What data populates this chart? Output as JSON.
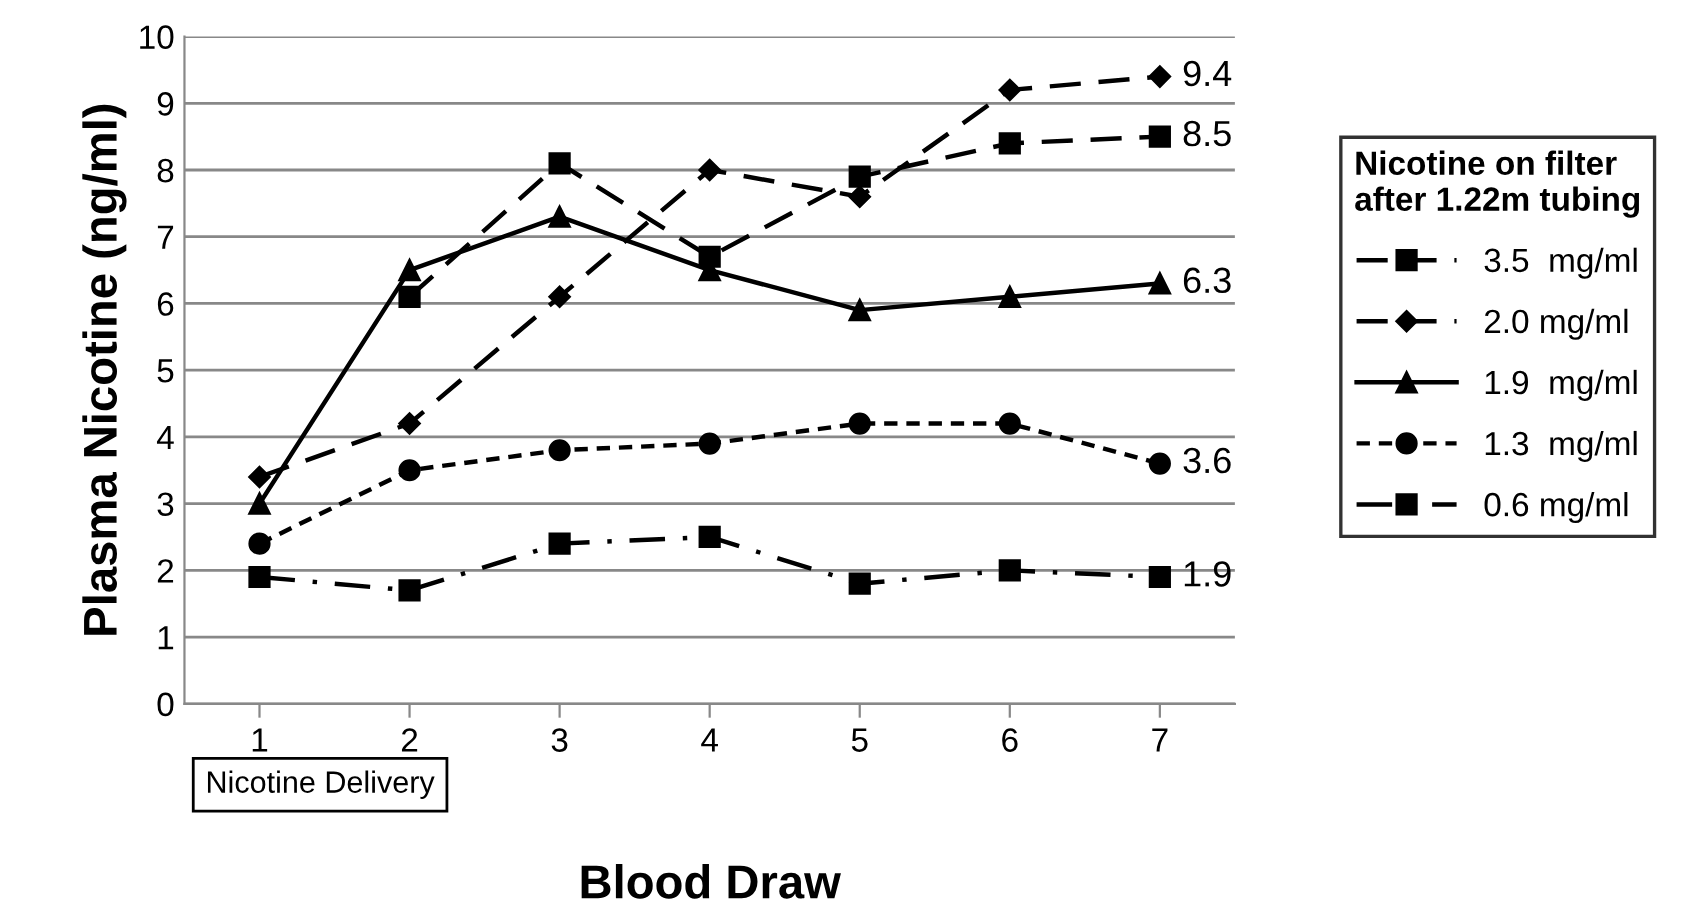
{
  "chart_data": {
    "type": "line",
    "xlabel": "Blood Draw",
    "ylabel": "Plasma Nicotine (ng/ml)",
    "legend_title": "Nicotine on filter\nafter 1.22m tubing",
    "categories": [
      "1",
      "2",
      "3",
      "4",
      "5",
      "6",
      "7"
    ],
    "series": [
      {
        "name": "3.5  mg/ml",
        "color": "#000000",
        "marker": "square",
        "line_style": "dashed",
        "values": [
          null,
          6.1,
          8.1,
          6.7,
          7.9,
          8.4,
          8.5
        ],
        "value_labels": [
          null,
          null,
          null,
          null,
          null,
          null,
          "8.5"
        ]
      },
      {
        "name": "2.0 mg/ml",
        "color": "#000000",
        "marker": "diamond",
        "line_style": "dashed",
        "values": [
          3.4,
          4.2,
          6.1,
          8.0,
          7.6,
          9.2,
          9.4
        ],
        "value_labels": [
          null,
          null,
          null,
          null,
          null,
          null,
          "9.4"
        ]
      },
      {
        "name": "1.9  mg/ml",
        "color": "#000000",
        "marker": "triangle",
        "line_style": "solid",
        "values": [
          3.0,
          6.5,
          7.3,
          6.5,
          5.9,
          6.1,
          6.3
        ],
        "value_labels": [
          null,
          null,
          null,
          null,
          null,
          null,
          "6.3"
        ]
      },
      {
        "name": "1.3  mg/ml",
        "color": "#000000",
        "marker": "circle",
        "line_style": "dotted",
        "values": [
          2.4,
          3.5,
          3.8,
          3.9,
          4.2,
          4.2,
          3.6
        ],
        "value_labels": [
          null,
          null,
          null,
          null,
          null,
          null,
          "3.6"
        ]
      },
      {
        "name": "0.6 mg/ml",
        "color": "#000000",
        "marker": "square",
        "line_style": "dashdot",
        "values": [
          1.9,
          1.7,
          2.4,
          2.5,
          1.8,
          2.0,
          1.9
        ],
        "value_labels": [
          null,
          null,
          null,
          null,
          null,
          null,
          "1.9"
        ]
      }
    ],
    "ylim": [
      0,
      10
    ],
    "yticks": [
      0,
      1,
      2,
      3,
      4,
      5,
      6,
      7,
      8,
      9,
      10
    ],
    "grid": "y",
    "legend": "right",
    "annotations": [
      "Nicotine Delivery"
    ]
  }
}
